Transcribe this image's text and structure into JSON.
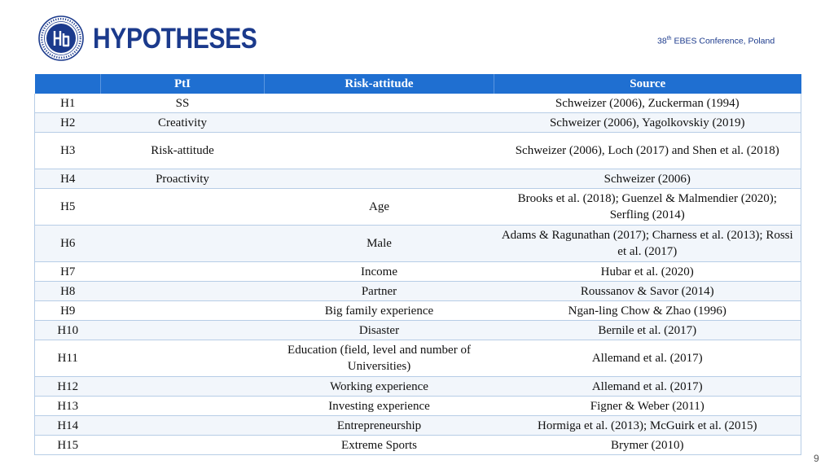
{
  "header": {
    "title": "HYPOTHESES",
    "conference": {
      "number": "38",
      "ordinal": "th",
      "name": "EBES Conference, Poland"
    }
  },
  "table": {
    "columns": [
      "",
      "PtI",
      "Risk-attitude",
      "Source"
    ],
    "rows": [
      {
        "id": "H1",
        "pti": "SS",
        "risk": "",
        "source": "Schweizer (2006), Zuckerman (1994)"
      },
      {
        "id": "H2",
        "pti": "Creativity",
        "risk": "",
        "source": "Schweizer (2006), Yagolkovskiy (2019)"
      },
      {
        "id": "H3",
        "pti": "Risk-attitude",
        "risk": "",
        "source": "Schweizer (2006), Loch (2017) and Shen et al. (2018)"
      },
      {
        "id": "H4",
        "pti": "Proactivity",
        "risk": "",
        "source": "Schweizer (2006)"
      },
      {
        "id": "H5",
        "pti": "",
        "risk": "Age",
        "source": "Brooks et al. (2018); Guenzel & Malmendier (2020); Serfling (2014)"
      },
      {
        "id": "H6",
        "pti": "",
        "risk": "Male",
        "source": "Adams & Ragunathan (2017); Charness et al. (2013); Rossi et al. (2017)"
      },
      {
        "id": "H7",
        "pti": "",
        "risk": "Income",
        "source": "Hubar et al. (2020)"
      },
      {
        "id": "H8",
        "pti": "",
        "risk": "Partner",
        "source": "Roussanov & Savor (2014)"
      },
      {
        "id": "H9",
        "pti": "",
        "risk": "Big family experience",
        "source": "Ngan-ling Chow & Zhao (1996)"
      },
      {
        "id": "H10",
        "pti": "",
        "risk": "Disaster",
        "source": "Bernile et al. (2017)"
      },
      {
        "id": "H11",
        "pti": "",
        "risk": "Education (field, level and number of Universities)",
        "source": "Allemand et al. (2017)"
      },
      {
        "id": "H12",
        "pti": "",
        "risk": "Working experience",
        "source": "Allemand et al. (2017)"
      },
      {
        "id": "H13",
        "pti": "",
        "risk": "Investing experience",
        "source": "Figner & Weber (2011)"
      },
      {
        "id": "H14",
        "pti": "",
        "risk": "Entrepreneurship",
        "source": "Hormiga et al. (2013); McGuirk et al. (2015)"
      },
      {
        "id": "H15",
        "pti": "",
        "risk": "Extreme Sports",
        "source": "Brymer (2010)"
      }
    ]
  },
  "page_number": "9",
  "colors": {
    "brand": "#1b3a8c",
    "header_fill": "#1f6fd1",
    "row_alt": "#f2f6fb",
    "grid": "#b7cde6"
  },
  "logo": {
    "icon": "hse-university-seal-icon"
  }
}
